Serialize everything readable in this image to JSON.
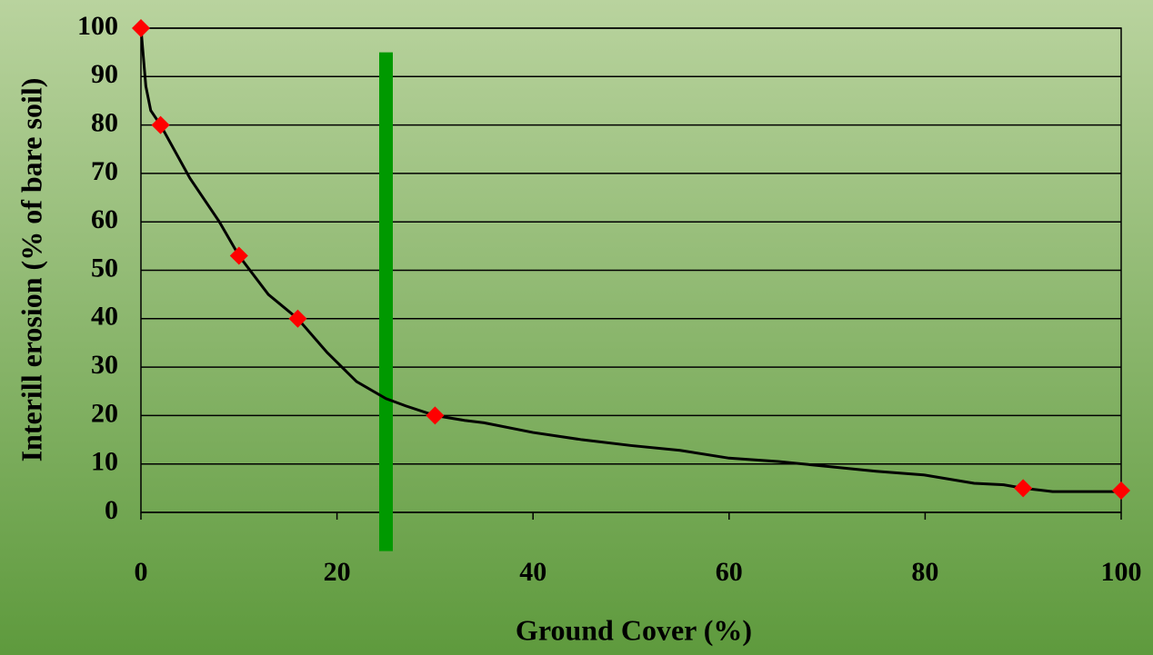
{
  "chart_data": {
    "type": "scatter",
    "x_label": "Ground Cover (%)",
    "y_label": "Interill erosion (% of bare soil)",
    "xlim": [
      0,
      100
    ],
    "xticks": [
      0,
      20,
      40,
      60,
      80,
      100
    ],
    "ylim": [
      0,
      100
    ],
    "yticks": [
      0,
      10,
      20,
      30,
      40,
      50,
      60,
      70,
      80,
      90,
      100
    ],
    "grid": true,
    "series": [
      {
        "kind": "line",
        "color": "#000000",
        "x": [
          0,
          0.5,
          1,
          2,
          5,
          8,
          10,
          13,
          16,
          19,
          22,
          25,
          27,
          30,
          33,
          35,
          40,
          45,
          50,
          55,
          60,
          65,
          70,
          75,
          80,
          85,
          88,
          90,
          93,
          95,
          100
        ],
        "values": [
          100,
          88,
          83,
          80,
          69,
          60,
          53,
          45,
          40,
          33,
          27,
          23.5,
          22,
          20,
          19,
          18.5,
          16.5,
          15,
          13.8,
          12.8,
          11.2,
          10.5,
          9.5,
          8.5,
          7.7,
          6,
          5.7,
          5,
          4.3,
          4.3,
          4.3
        ]
      },
      {
        "kind": "marker",
        "color": "#ff0000",
        "x": [
          0,
          2,
          10,
          16,
          30,
          90,
          100
        ],
        "values": [
          100,
          80,
          53,
          40,
          20,
          5,
          4.5
        ]
      }
    ],
    "vline": {
      "x": 25,
      "ymin": -8,
      "ymax": 95,
      "color": "#009900"
    }
  }
}
